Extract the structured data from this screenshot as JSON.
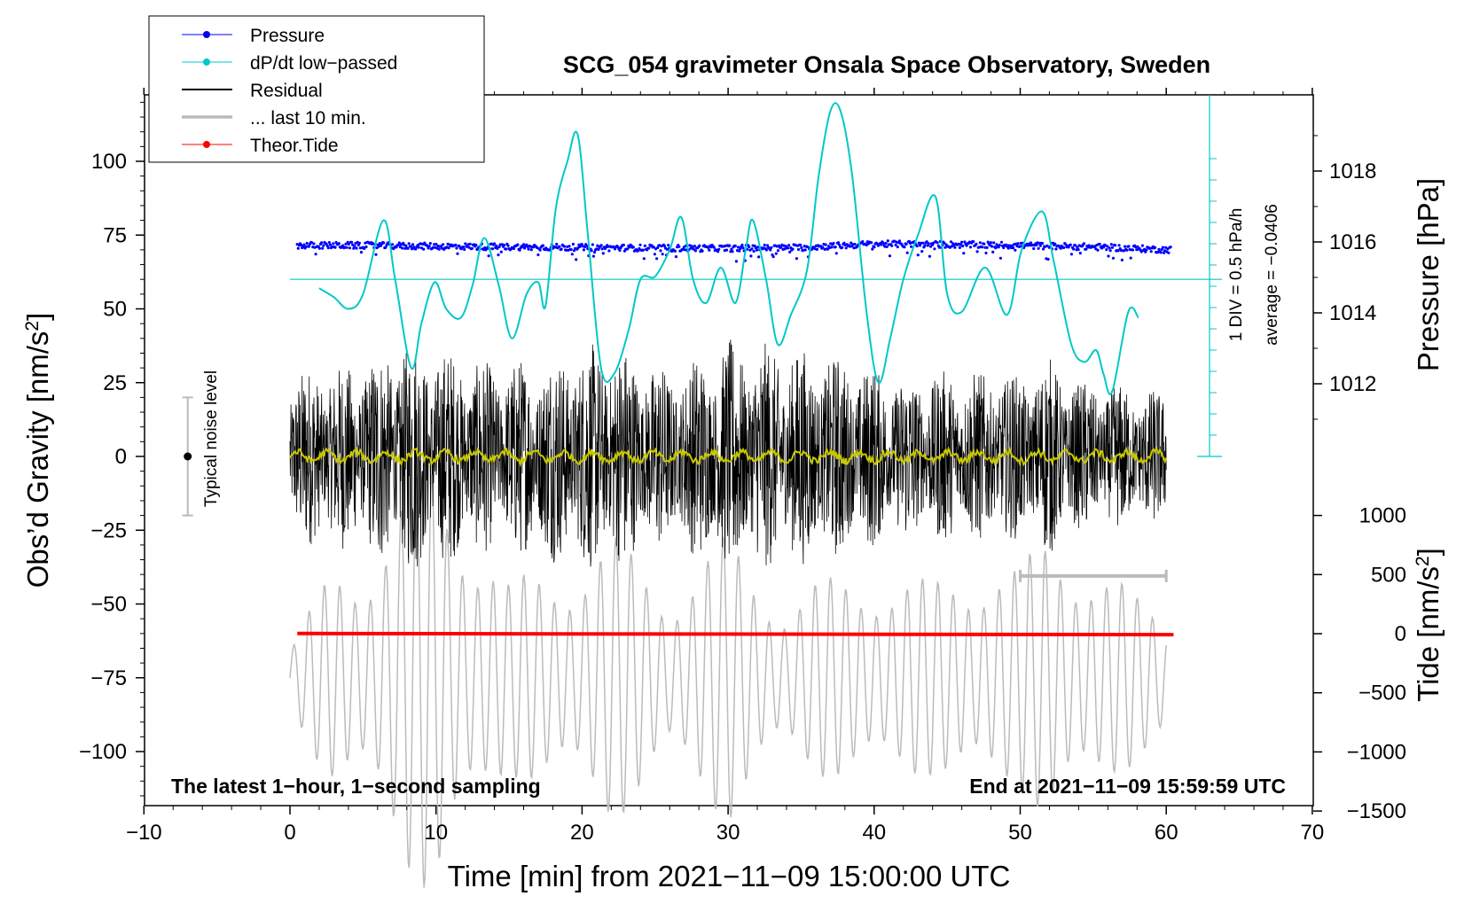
{
  "chart_data": {
    "type": "line",
    "title": "SCG_054 gravimeter Onsala Space Observatory, Sweden",
    "xlabel": "Time [min] from 2021−11−09 15:00:00 UTC",
    "ylabel_left": "Obs’d Gravity [nm/s",
    "ylabel_left_sup": "2",
    "ylabel_left_end": "]",
    "ylabel_right_pressure": "Pressure [hPa]",
    "ylabel_right_tide": "Tide [nm/s",
    "ylabel_right_tide_sup": "2",
    "ylabel_right_tide_end": "]",
    "xlim": [
      -10,
      70
    ],
    "ylim_left": [
      -120,
      122
    ],
    "x_ticks": [
      -10,
      0,
      10,
      20,
      30,
      40,
      50,
      60,
      70
    ],
    "x_tick_labels": [
      "−10",
      "0",
      "10",
      "20",
      "30",
      "40",
      "50",
      "60",
      "70"
    ],
    "y_ticks_left": [
      100,
      75,
      50,
      25,
      0,
      -25,
      -50,
      -75,
      -100
    ],
    "y_tick_labels_left": [
      "100",
      "75",
      "50",
      "25",
      "0",
      "−25",
      "−50",
      "−75",
      "−100"
    ],
    "pressure_ticks": [
      1018,
      1016,
      1014,
      1012
    ],
    "pressure_tick_labels": [
      "1018",
      "1016",
      "1014",
      "1012"
    ],
    "tide_ticks": [
      1000,
      500,
      0,
      -500,
      -1000,
      -1500
    ],
    "tide_tick_labels": [
      "1000",
      "500",
      "0",
      "−500",
      "−1000",
      "−1500"
    ],
    "legend": [
      {
        "label": "Pressure",
        "color": "#0000ff",
        "style": "dots"
      },
      {
        "label": "dP/dt low−passed",
        "color": "#00c8c8",
        "style": "dots"
      },
      {
        "label": "Residual",
        "color": "#000000",
        "style": "line"
      },
      {
        "label": "... last 10 min.",
        "color": "#bbbbbb",
        "style": "thickline"
      },
      {
        "label": "Theor.Tide",
        "color": "#ff0000",
        "style": "dots"
      }
    ],
    "annotations": {
      "left_bottom": "The latest 1−hour, 1−second sampling",
      "right_bottom": "End at 2021−11−09 15:59:59 UTC",
      "noise_label": "Typical noise level",
      "dpdt_div": "1 DIV = 0.5 hPa/h",
      "dpdt_avg": "average = −0.0406"
    },
    "noise_bar": {
      "x": -7,
      "center": 0,
      "low": -20,
      "high": 20
    },
    "pressure_series": {
      "name": "Pressure",
      "color": "#0000ff",
      "x": [
        0.5,
        5,
        10,
        15,
        20,
        25,
        30,
        35,
        40,
        45,
        50,
        55,
        60.3
      ],
      "y": [
        71.5,
        71.5,
        71.2,
        71.0,
        70.8,
        70.6,
        70.5,
        70.8,
        72.0,
        71.8,
        71.5,
        71.0,
        70.0
      ]
    },
    "dpdt_series": {
      "name": "dP/dt low−passed",
      "color": "#00c8c8",
      "average_level": 60,
      "x": [
        2.0,
        3.0,
        4.0,
        5.0,
        6.4,
        7.2,
        8.3,
        9.0,
        9.9,
        10.7,
        11.7,
        12.5,
        13.3,
        14.3,
        15.2,
        16.2,
        17.0,
        17.5,
        18.2,
        19.0,
        19.7,
        20.4,
        21.3,
        22.2,
        23.2,
        24.0,
        25.0,
        26.0,
        26.8,
        27.6,
        28.5,
        29.5,
        30.5,
        31.2,
        31.7,
        32.6,
        33.4,
        34.3,
        35.4,
        36.2,
        37.0,
        37.7,
        38.5,
        39.5,
        40.3,
        41.1,
        42.0,
        43.0,
        44.2,
        45.0,
        46.0,
        47.6,
        49.1,
        50.1,
        51.5,
        52.3,
        53.5,
        54.4,
        55.2,
        55.7,
        56.3,
        57.4,
        58.1
      ],
      "y": [
        57,
        54,
        50,
        55,
        80,
        60,
        30,
        45,
        59,
        50,
        47,
        58,
        74,
        58,
        40,
        55,
        59,
        51,
        84,
        100,
        109,
        75,
        30,
        28,
        43,
        60,
        61,
        70,
        81,
        60,
        52,
        64,
        52,
        70,
        80,
        60,
        38,
        48,
        63,
        95,
        117,
        117,
        95,
        48,
        25,
        40,
        60,
        75,
        88,
        55,
        49,
        64,
        48,
        70,
        83,
        66,
        38,
        32,
        36,
        28,
        22,
        49,
        47
      ]
    },
    "residual_series": {
      "name": "Residual",
      "color": "#000000",
      "x_range": [
        0,
        60
      ],
      "amplitude_peak": 45
    },
    "residual_smoothed": {
      "color": "#c8c800"
    },
    "tide_series": {
      "name": "Theor.Tide",
      "color": "#ff0000",
      "x": [
        0.5,
        60.5
      ],
      "y": [
        -60,
        -60.4
      ]
    },
    "last10_marker": {
      "x": [
        50,
        60
      ],
      "y": -40.5,
      "color": "#bbbbbb"
    }
  }
}
